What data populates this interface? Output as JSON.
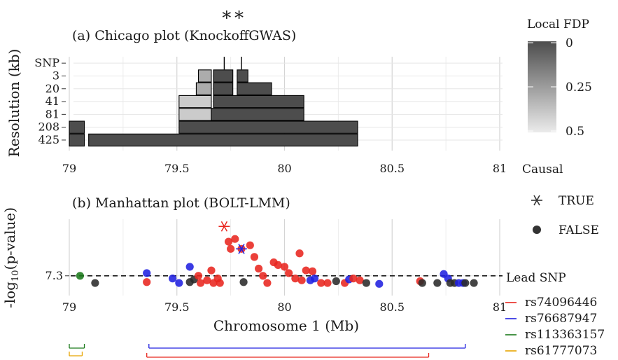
{
  "top_marker": "∗∗",
  "legend": {
    "fdp_title": "Local FDP",
    "fdp_ticks": [
      "0",
      "0.25",
      "0.5"
    ],
    "causal_title": "Causal",
    "causal_true": "TRUE",
    "causal_false": "FALSE",
    "lead_title": "Lead SNP",
    "lead_items": [
      {
        "label": "rs74096446",
        "color": "#e8261f"
      },
      {
        "label": "rs76687947",
        "color": "#2020e0"
      },
      {
        "label": "rs113363157",
        "color": "#1b7a1b"
      },
      {
        "label": "rs61777073",
        "color": "#e8a500"
      }
    ]
  },
  "chart_data": [
    {
      "type": "bar",
      "title": "(a) Chicago plot (KnockoffGWAS)",
      "xlabel": "",
      "ylabel": "Resolution (kb)",
      "xlim": [
        79.0,
        81.0
      ],
      "x_ticks": [
        "79",
        "79.5",
        "80",
        "80.5",
        "81"
      ],
      "x_tick_values": [
        79,
        79.5,
        80,
        80.5,
        81
      ],
      "y_categories": [
        "425",
        "208",
        "81",
        "41",
        "20",
        "3",
        "SNP"
      ],
      "y_tick_colors": [
        "#1a1a1a",
        "#1a1a1a",
        "#1a1a1a",
        "#1a1a1a",
        "#1a1a1a",
        "#1a1a1a",
        "#777777"
      ],
      "grid": true,
      "intervals": [
        {
          "level": "425",
          "start": 79.0,
          "end": 79.07,
          "fdp": 0.0
        },
        {
          "level": "425",
          "start": 79.09,
          "end": 80.34,
          "fdp": 0.0
        },
        {
          "level": "208",
          "start": 79.0,
          "end": 79.07,
          "fdp": 0.0
        },
        {
          "level": "208",
          "start": 79.51,
          "end": 80.34,
          "fdp": 0.0
        },
        {
          "level": "81",
          "start": 79.51,
          "end": 79.66,
          "fdp": 0.4
        },
        {
          "level": "81",
          "start": 79.66,
          "end": 80.09,
          "fdp": 0.0
        },
        {
          "level": "41",
          "start": 79.51,
          "end": 79.66,
          "fdp": 0.4
        },
        {
          "level": "41",
          "start": 79.67,
          "end": 80.09,
          "fdp": 0.0
        },
        {
          "level": "20",
          "start": 79.59,
          "end": 79.66,
          "fdp": 0.3
        },
        {
          "level": "20",
          "start": 79.67,
          "end": 79.76,
          "fdp": 0.0
        },
        {
          "level": "20",
          "start": 79.78,
          "end": 79.94,
          "fdp": 0.0
        },
        {
          "level": "3",
          "start": 79.6,
          "end": 79.66,
          "fdp": 0.3
        },
        {
          "level": "3",
          "start": 79.67,
          "end": 79.76,
          "fdp": 0.0
        },
        {
          "level": "3",
          "start": 79.78,
          "end": 79.83,
          "fdp": 0.0
        }
      ],
      "snps": [
        79.72,
        79.8
      ],
      "annotation": "∗∗",
      "annotation_x": [
        79.72,
        79.8
      ]
    },
    {
      "type": "scatter",
      "title": "(b) Manhattan plot (BOLT-LMM)",
      "xlabel": "Chromosome 1 (Mb)",
      "ylabel": "-log10(p-value)",
      "xlim": [
        79.0,
        81.0
      ],
      "x_ticks": [
        "79",
        "79.5",
        "80",
        "80.5",
        "81"
      ],
      "x_tick_values": [
        79,
        79.5,
        80,
        80.5,
        81
      ],
      "y_ticks": [
        "7.3"
      ],
      "y_tick_values": [
        7.3
      ],
      "threshold": 7.3,
      "grid": true,
      "points": [
        {
          "x": 79.05,
          "y": 7.3,
          "group": "rs113363157",
          "causal": false
        },
        {
          "x": 79.12,
          "y": 7.22,
          "group": "none",
          "causal": false
        },
        {
          "x": 79.36,
          "y": 7.33,
          "group": "rs76687947",
          "causal": false
        },
        {
          "x": 79.36,
          "y": 7.23,
          "group": "rs74096446",
          "causal": false
        },
        {
          "x": 79.48,
          "y": 7.27,
          "group": "rs76687947",
          "causal": false
        },
        {
          "x": 79.51,
          "y": 7.22,
          "group": "rs76687947",
          "causal": false
        },
        {
          "x": 79.56,
          "y": 7.4,
          "group": "rs76687947",
          "causal": false
        },
        {
          "x": 79.56,
          "y": 7.23,
          "group": "none",
          "causal": false
        },
        {
          "x": 79.58,
          "y": 7.26,
          "group": "none",
          "causal": false
        },
        {
          "x": 79.6,
          "y": 7.3,
          "group": "rs74096446",
          "causal": false
        },
        {
          "x": 79.61,
          "y": 7.22,
          "group": "rs74096446",
          "causal": false
        },
        {
          "x": 79.64,
          "y": 7.25,
          "group": "rs74096446",
          "causal": false
        },
        {
          "x": 79.66,
          "y": 7.36,
          "group": "rs74096446",
          "causal": false
        },
        {
          "x": 79.67,
          "y": 7.22,
          "group": "rs74096446",
          "causal": false
        },
        {
          "x": 79.69,
          "y": 7.27,
          "group": "rs74096446",
          "causal": false
        },
        {
          "x": 79.7,
          "y": 7.22,
          "group": "rs74096446",
          "causal": false
        },
        {
          "x": 79.72,
          "y": 7.85,
          "group": "rs74096446",
          "causal": true
        },
        {
          "x": 79.74,
          "y": 7.68,
          "group": "rs74096446",
          "causal": false
        },
        {
          "x": 79.75,
          "y": 7.6,
          "group": "rs74096446",
          "causal": false
        },
        {
          "x": 79.77,
          "y": 7.71,
          "group": "rs74096446",
          "causal": false
        },
        {
          "x": 79.8,
          "y": 7.6,
          "group": "rs76687947",
          "causal": true
        },
        {
          "x": 79.8,
          "y": 7.6,
          "group": "rs74096446",
          "causal": false
        },
        {
          "x": 79.81,
          "y": 7.23,
          "group": "none",
          "causal": false
        },
        {
          "x": 79.84,
          "y": 7.64,
          "group": "rs74096446",
          "causal": false
        },
        {
          "x": 79.86,
          "y": 7.51,
          "group": "rs74096446",
          "causal": false
        },
        {
          "x": 79.88,
          "y": 7.38,
          "group": "rs74096446",
          "causal": false
        },
        {
          "x": 79.9,
          "y": 7.3,
          "group": "rs74096446",
          "causal": false
        },
        {
          "x": 79.92,
          "y": 7.22,
          "group": "rs74096446",
          "causal": false
        },
        {
          "x": 79.95,
          "y": 7.45,
          "group": "rs74096446",
          "causal": false
        },
        {
          "x": 79.97,
          "y": 7.42,
          "group": "rs74096446",
          "causal": false
        },
        {
          "x": 80.0,
          "y": 7.4,
          "group": "rs74096446",
          "causal": false
        },
        {
          "x": 80.02,
          "y": 7.33,
          "group": "rs74096446",
          "causal": false
        },
        {
          "x": 80.05,
          "y": 7.27,
          "group": "rs74096446",
          "causal": false
        },
        {
          "x": 80.07,
          "y": 7.55,
          "group": "rs74096446",
          "causal": false
        },
        {
          "x": 80.08,
          "y": 7.25,
          "group": "rs74096446",
          "causal": false
        },
        {
          "x": 80.1,
          "y": 7.36,
          "group": "rs74096446",
          "causal": false
        },
        {
          "x": 80.12,
          "y": 7.25,
          "group": "rs76687947",
          "causal": false
        },
        {
          "x": 80.13,
          "y": 7.35,
          "group": "rs74096446",
          "causal": false
        },
        {
          "x": 80.14,
          "y": 7.27,
          "group": "rs76687947",
          "causal": false
        },
        {
          "x": 80.17,
          "y": 7.22,
          "group": "rs74096446",
          "causal": false
        },
        {
          "x": 80.2,
          "y": 7.22,
          "group": "rs74096446",
          "causal": false
        },
        {
          "x": 80.24,
          "y": 7.24,
          "group": "none",
          "causal": false
        },
        {
          "x": 80.28,
          "y": 7.22,
          "group": "rs74096446",
          "causal": false
        },
        {
          "x": 80.3,
          "y": 7.26,
          "group": "rs76687947",
          "causal": false
        },
        {
          "x": 80.32,
          "y": 7.27,
          "group": "rs74096446",
          "causal": false
        },
        {
          "x": 80.35,
          "y": 7.25,
          "group": "rs74096446",
          "causal": false
        },
        {
          "x": 80.38,
          "y": 7.22,
          "group": "none",
          "causal": false
        },
        {
          "x": 80.44,
          "y": 7.21,
          "group": "rs76687947",
          "causal": false
        },
        {
          "x": 80.63,
          "y": 7.24,
          "group": "rs74096446",
          "causal": false
        },
        {
          "x": 80.64,
          "y": 7.22,
          "group": "none",
          "causal": false
        },
        {
          "x": 80.71,
          "y": 7.22,
          "group": "none",
          "causal": false
        },
        {
          "x": 80.74,
          "y": 7.32,
          "group": "rs76687947",
          "causal": false
        },
        {
          "x": 80.76,
          "y": 7.27,
          "group": "rs76687947",
          "causal": false
        },
        {
          "x": 80.77,
          "y": 7.22,
          "group": "none",
          "causal": false
        },
        {
          "x": 80.79,
          "y": 7.22,
          "group": "none",
          "causal": false
        },
        {
          "x": 80.81,
          "y": 7.22,
          "group": "rs76687947",
          "causal": false
        },
        {
          "x": 80.83,
          "y": 7.22,
          "group": "rs76687947",
          "causal": false
        },
        {
          "x": 80.84,
          "y": 7.22,
          "group": "none",
          "causal": false
        },
        {
          "x": 80.88,
          "y": 7.22,
          "group": "none",
          "causal": false
        }
      ],
      "ylim": [
        7.08,
        7.93
      ]
    }
  ],
  "lead_snp_ranges": [
    {
      "group": "rs74096446",
      "start": 79.36,
      "end": 80.67
    },
    {
      "group": "rs76687947",
      "start": 79.37,
      "end": 80.84
    },
    {
      "group": "rs113363157",
      "start": 79.0,
      "end": 79.07
    },
    {
      "group": "rs61777073",
      "start": 79.0,
      "end": 79.06
    }
  ]
}
